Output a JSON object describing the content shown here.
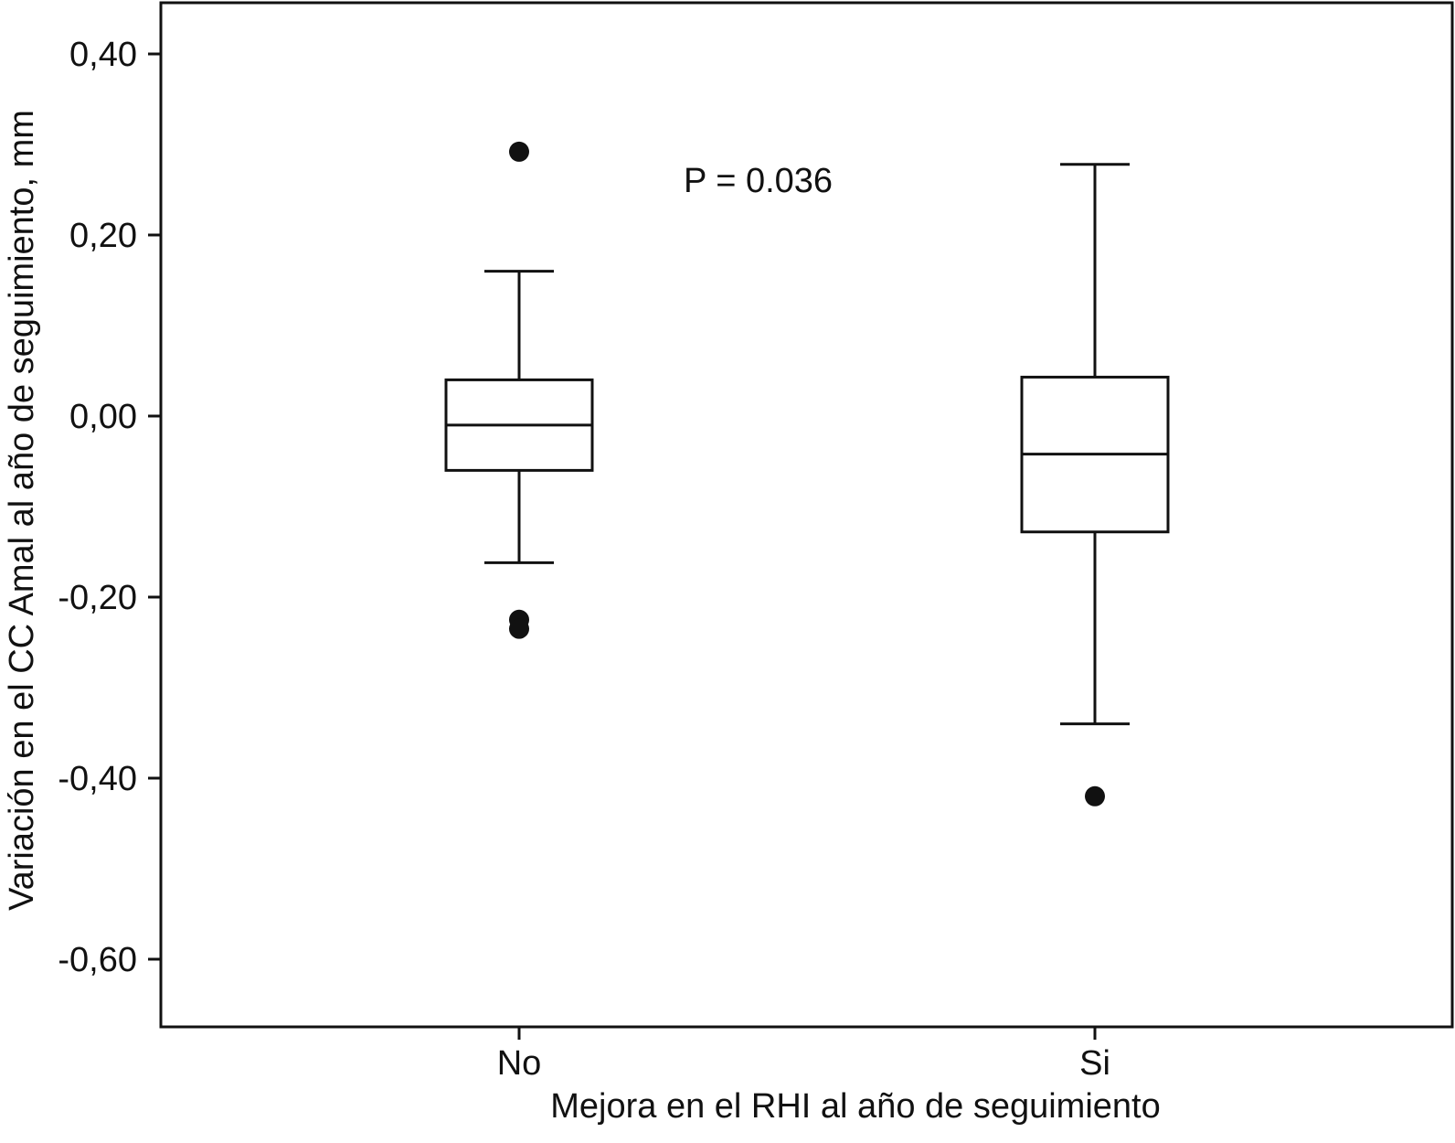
{
  "chart_data": {
    "type": "box",
    "title": "",
    "xlabel": "Mejora en el RHI al año de seguimiento",
    "ylabel": "Variación en el CC Amal al año de seguimiento, mm",
    "ylim": [
      -0.7,
      0.45
    ],
    "yticks": [
      0.4,
      0.2,
      0.0,
      -0.2,
      -0.4,
      -0.6
    ],
    "ytick_labels": [
      "0,40",
      "0,20",
      "0,00",
      "-0,20",
      "-0,40",
      "-0,60"
    ],
    "categories": [
      "No",
      "Si"
    ],
    "boxes": [
      {
        "category": "No",
        "whisker_high": 0.16,
        "q3": 0.04,
        "median": -0.01,
        "q1": -0.06,
        "whisker_low": -0.162,
        "outliers": [
          0.292,
          -0.225,
          -0.235
        ]
      },
      {
        "category": "Si",
        "whisker_high": 0.278,
        "q3": 0.043,
        "median": -0.042,
        "q1": -0.128,
        "whisker_low": -0.34,
        "outliers": [
          -0.42
        ]
      }
    ],
    "annotations": [
      {
        "text": "P = 0.036"
      }
    ],
    "grid": false,
    "legend": "none",
    "colors": {
      "stroke": "#111111",
      "box_fill": "#ffffff",
      "outlier": "#111111"
    }
  }
}
